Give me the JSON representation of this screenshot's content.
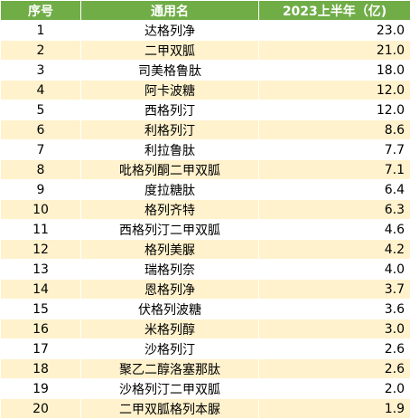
{
  "table": {
    "headers": [
      "序号",
      "通用名",
      "2023上半年（亿)"
    ],
    "rows": [
      {
        "no": "1",
        "name": "达格列净",
        "value": "23.0"
      },
      {
        "no": "2",
        "name": "二甲双胍",
        "value": "21.0"
      },
      {
        "no": "3",
        "name": "司美格鲁肽",
        "value": "18.0"
      },
      {
        "no": "4",
        "name": "阿卡波糖",
        "value": "12.0"
      },
      {
        "no": "5",
        "name": "西格列汀",
        "value": "12.0"
      },
      {
        "no": "6",
        "name": "利格列汀",
        "value": "8.6"
      },
      {
        "no": "7",
        "name": "利拉鲁肽",
        "value": "7.7"
      },
      {
        "no": "8",
        "name": "吡格列酮二甲双胍",
        "value": "7.1"
      },
      {
        "no": "9",
        "name": "度拉糖肽",
        "value": "6.4"
      },
      {
        "no": "10",
        "name": "格列齐特",
        "value": "6.3"
      },
      {
        "no": "11",
        "name": "西格列汀二甲双胍",
        "value": "4.6"
      },
      {
        "no": "12",
        "name": "格列美脲",
        "value": "4.2"
      },
      {
        "no": "13",
        "name": "瑞格列奈",
        "value": "4.0"
      },
      {
        "no": "14",
        "name": "恩格列净",
        "value": "3.7"
      },
      {
        "no": "15",
        "name": "伏格列波糖",
        "value": "3.6"
      },
      {
        "no": "16",
        "name": "米格列醇",
        "value": "3.0"
      },
      {
        "no": "17",
        "name": "沙格列汀",
        "value": "2.6"
      },
      {
        "no": "18",
        "name": "聚乙二醇洛塞那肽",
        "value": "2.6"
      },
      {
        "no": "19",
        "name": "沙格列汀二甲双胍",
        "value": "2.0"
      },
      {
        "no": "20",
        "name": "二甲双胍格列本脲",
        "value": "1.9"
      }
    ]
  },
  "colors": {
    "header_bg": "#70ad47",
    "header_text": "#ffffff",
    "stripe": "#fff2cc",
    "row_bg": "#ffffff"
  }
}
